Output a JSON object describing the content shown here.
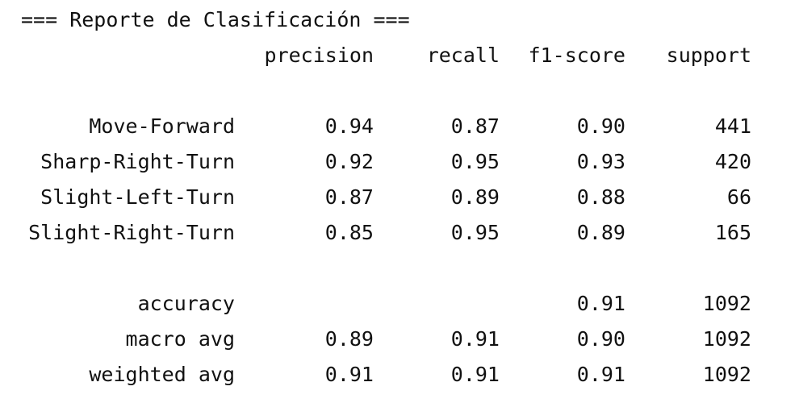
{
  "title": "=== Reporte de Clasificación ===",
  "headers": {
    "precision": "precision",
    "recall": "recall",
    "f1": "f1-score",
    "support": "support"
  },
  "class_rows": [
    {
      "label": "Move-Forward",
      "precision": "0.94",
      "recall": "0.87",
      "f1": "0.90",
      "support": "441"
    },
    {
      "label": "Sharp-Right-Turn",
      "precision": "0.92",
      "recall": "0.95",
      "f1": "0.93",
      "support": "420"
    },
    {
      "label": "Slight-Left-Turn",
      "precision": "0.87",
      "recall": "0.89",
      "f1": "0.88",
      "support": "66"
    },
    {
      "label": "Slight-Right-Turn",
      "precision": "0.85",
      "recall": "0.95",
      "f1": "0.89",
      "support": "165"
    }
  ],
  "summary_rows": [
    {
      "label": "accuracy",
      "precision": "",
      "recall": "",
      "f1": "0.91",
      "support": "1092"
    },
    {
      "label": "macro avg",
      "precision": "0.89",
      "recall": "0.91",
      "f1": "0.90",
      "support": "1092"
    },
    {
      "label": "weighted avg",
      "precision": "0.91",
      "recall": "0.91",
      "f1": "0.91",
      "support": "1092"
    }
  ]
}
